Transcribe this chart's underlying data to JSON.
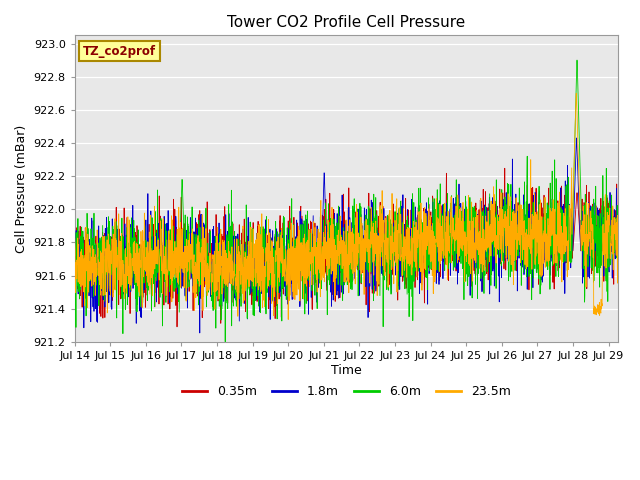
{
  "title": "Tower CO2 Profile Cell Pressure",
  "xlabel": "Time",
  "ylabel": "Cell Pressure (mBar)",
  "ylim": [
    921.2,
    923.05
  ],
  "series_labels": [
    "0.35m",
    "1.8m",
    "6.0m",
    "23.5m"
  ],
  "series_colors": [
    "#cc0000",
    "#0000cc",
    "#00cc00",
    "#ffaa00"
  ],
  "annotation_text": "TZ_co2prof",
  "annotation_facecolor": "#ffff99",
  "annotation_edgecolor": "#aa8800",
  "background_color": "#ffffff",
  "plot_bg_color": "#e8e8e8",
  "grid_color": "#ffffff",
  "x_tick_labels": [
    "Jul 14",
    "Jul 15",
    "Jul 16",
    "Jul 17",
    "Jul 18",
    "Jul 19",
    "Jul 20",
    "Jul 21",
    "Jul 22",
    "Jul 23",
    "Jul 24",
    "Jul 25",
    "Jul 26",
    "Jul 27",
    "Jul 28",
    "Jul 29"
  ],
  "x_tick_positions": [
    0,
    144,
    288,
    432,
    576,
    720,
    864,
    1008,
    1152,
    1296,
    1440,
    1584,
    1728,
    1872,
    2016,
    2160
  ],
  "n_points": 2200,
  "base_pressure": 921.75,
  "seed": 42
}
